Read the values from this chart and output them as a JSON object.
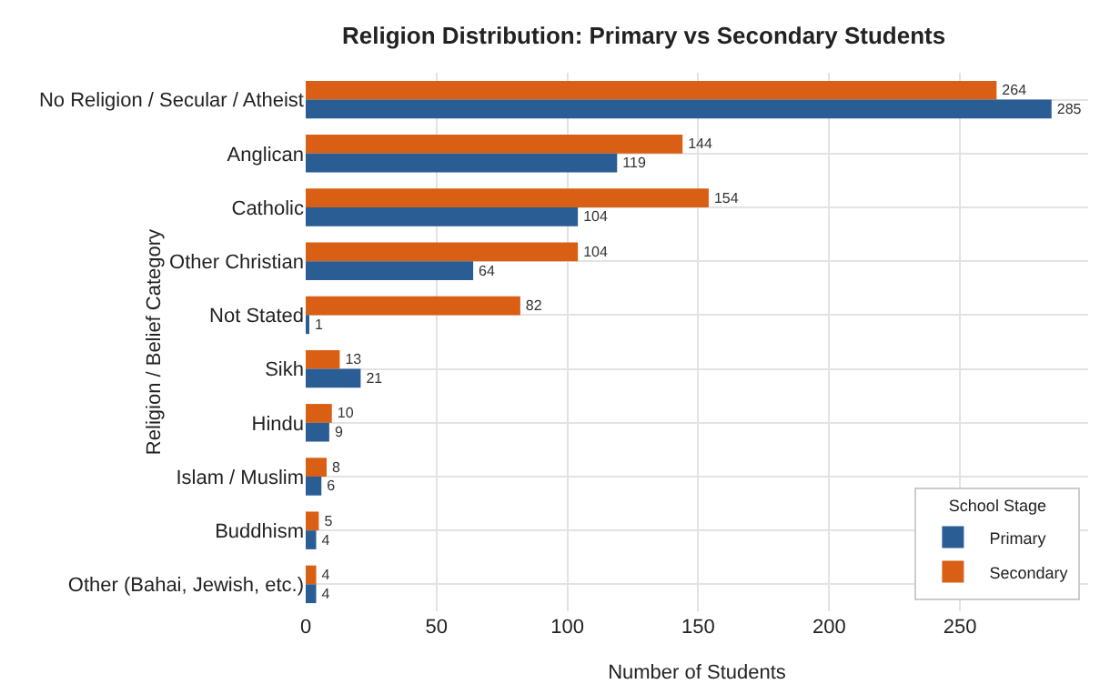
{
  "chart_data": {
    "type": "bar",
    "orientation": "horizontal",
    "title": "Religion Distribution: Primary vs Secondary Students",
    "xlabel": "Number of Students",
    "ylabel": "Religion / Belief Category",
    "legend_title": "School Stage",
    "categories": [
      "No Religion / Secular / Atheist",
      "Anglican",
      "Catholic",
      "Other Christian",
      "Not Stated",
      "Sikh",
      "Hindu",
      "Islam / Muslim",
      "Buddhism",
      "Other (Bahai, Jewish, etc.)"
    ],
    "series": [
      {
        "name": "Primary",
        "color": "#2b5d95",
        "values": [
          285,
          119,
          104,
          64,
          1,
          21,
          9,
          6,
          4,
          4
        ]
      },
      {
        "name": "Secondary",
        "color": "#d95f14",
        "values": [
          264,
          144,
          154,
          104,
          82,
          13,
          10,
          8,
          5,
          4
        ]
      }
    ],
    "xlim": [
      0,
      299
    ],
    "xticks": [
      0,
      50,
      100,
      150,
      200,
      250
    ],
    "grid": true,
    "legend": "bottom right",
    "data_labels": true
  }
}
